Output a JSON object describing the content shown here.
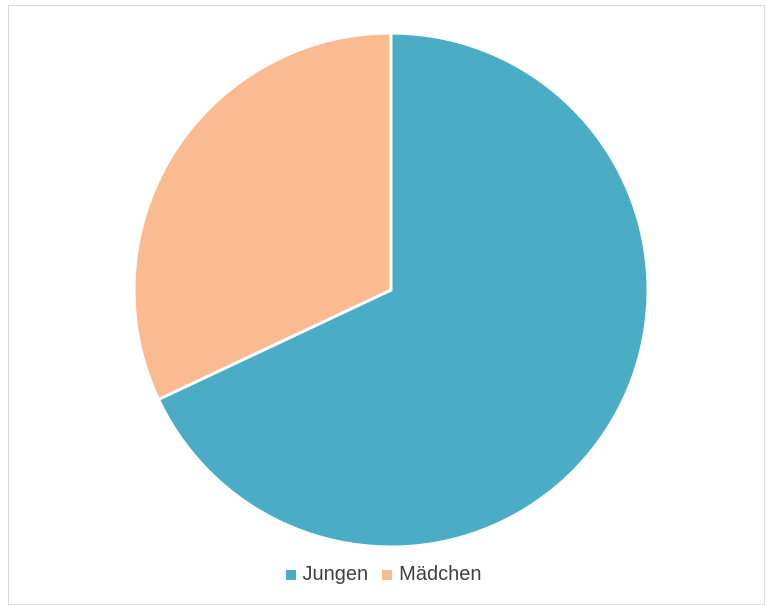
{
  "chart_data": {
    "type": "pie",
    "series": [
      {
        "name": "Jungen",
        "value": 68,
        "color": "#4bacc6"
      },
      {
        "name": "Mädchen",
        "value": 32,
        "color": "#f9bb8f"
      }
    ],
    "start_angle_deg": 0,
    "direction": "clockwise",
    "legend_position": "bottom"
  }
}
